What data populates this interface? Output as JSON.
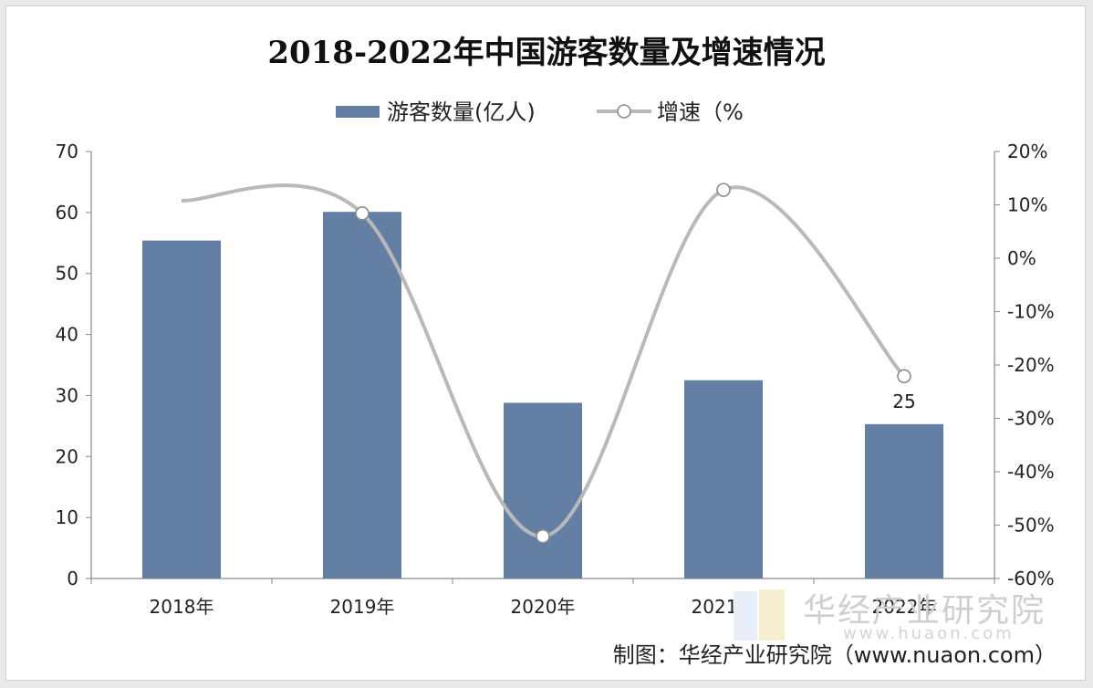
{
  "chart_data": {
    "type": "bar",
    "title": "2018-2022年中国游客数量及增速情况",
    "categories": [
      "2018年",
      "2019年",
      "2020年",
      "2021年",
      "2022年"
    ],
    "series": [
      {
        "name": "游客数量(亿人)",
        "type": "bar",
        "axis": "left",
        "values": [
          55.4,
          60.1,
          28.8,
          32.5,
          25.3
        ]
      },
      {
        "name": "增速（%",
        "type": "line",
        "axis": "right",
        "values": [
          10.8,
          8.4,
          -52.1,
          12.8,
          -22.1
        ]
      }
    ],
    "data_labels": [
      {
        "category": "2022年",
        "text": "25"
      }
    ],
    "y_left": {
      "min": 0,
      "max": 70,
      "ticks": [
        "0",
        "10",
        "20",
        "30",
        "40",
        "50",
        "60",
        "70"
      ]
    },
    "y_right": {
      "min": -60,
      "max": 20,
      "ticks": [
        "-60%",
        "-50%",
        "-40%",
        "-30%",
        "-20%",
        "-10%",
        "0%",
        "10%",
        "20%"
      ]
    },
    "legend_position": "top",
    "grid": false,
    "colors": {
      "bar": "#647fa4",
      "line": "#b9b9b9",
      "marker_fill": "#ffffff",
      "marker_stroke": "#8c8c8c"
    }
  },
  "credit": "制图：华经产业研究院（www.nuaon.com）",
  "watermark": {
    "text": "华经产业研究院",
    "url": "www.huaon.com"
  }
}
